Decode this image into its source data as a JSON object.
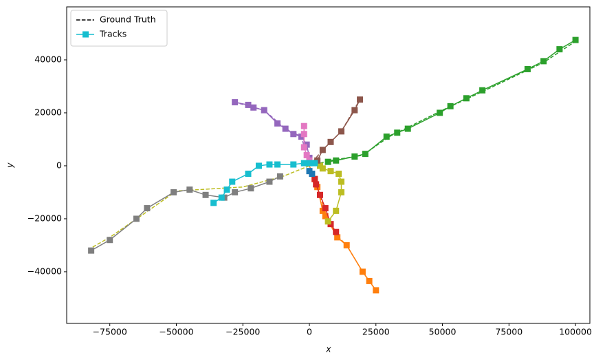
{
  "chart_data": {
    "type": "line",
    "x_label": "x",
    "y_label": "y",
    "xlim": [
      -91200,
      105400
    ],
    "ylim": [
      -59500,
      60000
    ],
    "xticks": [
      {
        "value": -75000,
        "label": "−75000"
      },
      {
        "value": -50000,
        "label": "−50000"
      },
      {
        "value": -25000,
        "label": "−25000"
      },
      0,
      25000,
      50000,
      75000,
      100000
    ],
    "yticks": [
      {
        "value": -40000,
        "label": "−40000"
      },
      {
        "value": -20000,
        "label": "−20000"
      },
      0,
      20000,
      40000
    ],
    "grid": false,
    "legend": {
      "loc": "upper left",
      "entries": [
        {
          "label": "Ground Truth",
          "color": "#000000",
          "style": "dashed"
        },
        {
          "label": "Tracks",
          "color": "#17becf",
          "style": "solid",
          "marker": "square"
        }
      ]
    },
    "series": [
      {
        "style": "dashed",
        "color": "#2ca02c",
        "x": [
          0,
          8000,
          20000,
          30000,
          50000,
          65000,
          88000,
          100000
        ],
        "values": [
          0,
          2000,
          4000,
          11000,
          21000,
          28000,
          39000,
          47000
        ]
      },
      {
        "style": "dashed",
        "color": "#ff7f0e",
        "x": [
          0,
          3000,
          6000,
          11000,
          14000,
          20000,
          25000
        ],
        "values": [
          0,
          -8000,
          -18000,
          -27000,
          -30000,
          -40000,
          -47000
        ]
      },
      {
        "style": "dashed",
        "color": "#bcbd22",
        "x": [
          0,
          -10000,
          -25000,
          -50000,
          -62000,
          -75000,
          -82000
        ],
        "values": [
          0,
          -4000,
          -8000,
          -9500,
          -18000,
          -27000,
          -31000
        ]
      },
      {
        "style": "dashed",
        "color": "#8c564b",
        "x": [
          0,
          5000,
          12000,
          19000
        ],
        "values": [
          0,
          6000,
          13000,
          25000
        ]
      },
      {
        "style": "dashed",
        "color": "#9467bd",
        "x": [
          0,
          -3000,
          -9000,
          -17000,
          -28000
        ],
        "values": [
          0,
          11000,
          14000,
          21000,
          24000
        ]
      },
      {
        "style": "solid",
        "color": "#2ca02c",
        "x": [
          7000,
          10000,
          17000,
          21000,
          29000,
          33000,
          37000,
          49000,
          53000,
          59000,
          65000,
          82000,
          88000,
          94000,
          100000
        ],
        "values": [
          1500,
          2000,
          3500,
          4500,
          11000,
          12500,
          14000,
          20000,
          22500,
          25500,
          28500,
          36500,
          39500,
          44000,
          47500
        ]
      },
      {
        "style": "solid",
        "color": "#ff7f0e",
        "x": [
          2000,
          3000,
          5000,
          6000,
          10500,
          14000,
          20000,
          22500,
          25000
        ],
        "values": [
          -5000,
          -8000,
          -17000,
          -19000,
          -27000,
          -30000,
          -40000,
          -43500,
          -47000
        ]
      },
      {
        "style": "solid",
        "color": "#d62728",
        "x": [
          2000,
          2500,
          4000,
          6000,
          8000,
          10000
        ],
        "values": [
          -5000,
          -7000,
          -11000,
          -16000,
          -22000,
          -25000
        ]
      },
      {
        "style": "solid",
        "color": "#bcbd22",
        "x": [
          4000,
          5000,
          8000,
          11000,
          12000,
          12000,
          10000,
          7000
        ],
        "values": [
          0,
          -1000,
          -2000,
          -3000,
          -6000,
          -10000,
          -17000,
          -21000
        ]
      },
      {
        "style": "solid",
        "color": "#7f7f7f",
        "x": [
          -82000,
          -75000,
          -65000,
          -61000,
          -51000,
          -45000,
          -39000,
          -32000,
          -28000,
          -22000,
          -15000,
          -11000
        ],
        "values": [
          -32000,
          -28000,
          -20000,
          -16000,
          -10000,
          -9000,
          -11000,
          -12000,
          -10000,
          -8500,
          -6000,
          -4000
        ]
      },
      {
        "style": "solid",
        "color": "#9467bd",
        "x": [
          -28000,
          -23000,
          -21000,
          -17000,
          -12000,
          -9000,
          -6000,
          -3000,
          -1000,
          0
        ],
        "values": [
          24000,
          23000,
          22000,
          21000,
          16000,
          14000,
          12000,
          11000,
          8000,
          3000
        ]
      },
      {
        "style": "solid",
        "color": "#e377c2",
        "x": [
          -2000,
          -2000,
          -2000,
          -1000,
          0
        ],
        "values": [
          15000,
          12000,
          7000,
          4000,
          2000
        ]
      },
      {
        "style": "solid",
        "color": "#8c564b",
        "x": [
          3000,
          5000,
          8000,
          12000,
          17000,
          19000
        ],
        "values": [
          2000,
          6000,
          9000,
          13000,
          21000,
          25000
        ]
      },
      {
        "style": "solid",
        "color": "#1f77b4",
        "x": [
          0,
          1000
        ],
        "values": [
          -2000,
          -3000
        ]
      },
      {
        "style": "solid",
        "color": "#17becf",
        "x": [
          2000,
          0,
          -2000,
          -6000,
          -12000,
          -15000,
          -19000,
          -23000,
          -29000,
          -31000,
          -33000,
          -36000
        ],
        "values": [
          1000,
          1000,
          1000,
          500,
          500,
          500,
          0,
          -3000,
          -6000,
          -9000,
          -12000,
          -14000
        ]
      }
    ]
  }
}
